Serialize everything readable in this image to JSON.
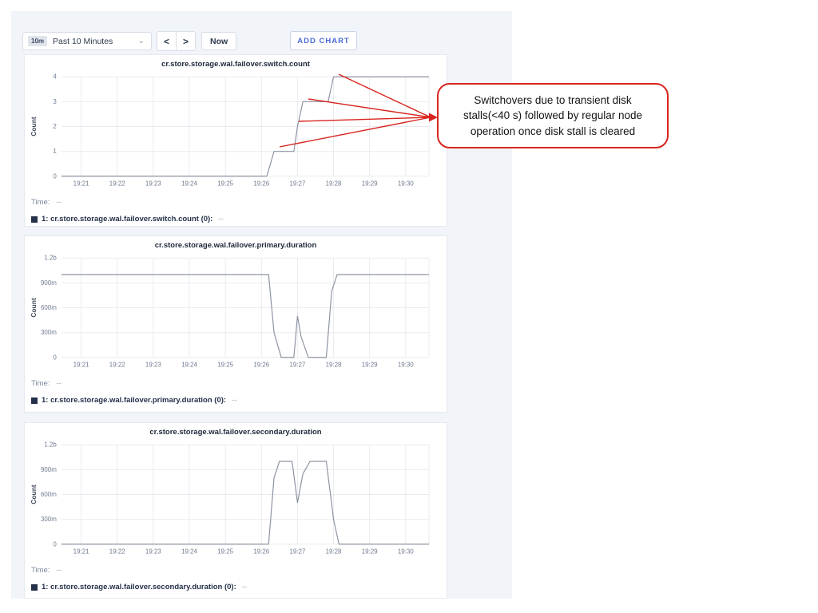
{
  "toolbar": {
    "time_badge": "10m",
    "time_label": "Past 10 Minutes",
    "prev_label": "<",
    "next_label": ">",
    "now_label": "Now",
    "add_chart_label": "ADD CHART",
    "accent_color": "#4a6bd6"
  },
  "annotation": {
    "text": "Switchovers due to transient disk stalls(<40 s) followed by regular node operation once disk stall is cleared",
    "color": "#d8251f",
    "arrow_origin": [
      539,
      147
    ],
    "arrow_targets": [
      [
        424,
        93
      ],
      [
        386,
        124
      ],
      [
        374,
        152
      ],
      [
        350,
        184
      ]
    ]
  },
  "chart_data": [
    {
      "type": "line",
      "title": "cr.store.storage.wal.failover.switch.count",
      "ylabel": "Count",
      "xlim": [
        20.45,
        30.65
      ],
      "ylim": [
        0,
        4
      ],
      "x_ticks": {
        "labels": [
          "19:21",
          "19:22",
          "19:23",
          "19:24",
          "19:25",
          "19:26",
          "19:27",
          "19:28",
          "19:29",
          "19:30"
        ],
        "values": [
          21,
          22,
          23,
          24,
          25,
          26,
          27,
          28,
          29,
          30
        ]
      },
      "y_ticks": {
        "labels": [
          "0",
          "1",
          "2",
          "3",
          "4"
        ],
        "values": [
          0,
          1,
          2,
          3,
          4
        ]
      },
      "line_color": "#8d94a2",
      "series_color": "#25304a",
      "series": [
        {
          "name": "1: cr.store.storage.wal.failover.switch.count (0)",
          "points": [
            [
              20.45,
              0
            ],
            [
              26.15,
              0
            ],
            [
              26.35,
              1
            ],
            [
              26.9,
              1
            ],
            [
              27.0,
              2
            ],
            [
              27.15,
              3
            ],
            [
              27.85,
              3
            ],
            [
              28.0,
              4
            ],
            [
              30.65,
              4
            ]
          ]
        }
      ],
      "legend": {
        "time_label": "Time:",
        "time_value": "--",
        "series_label": "1: cr.store.storage.wal.failover.switch.count (0):",
        "series_value": "--"
      }
    },
    {
      "type": "line",
      "title": "cr.store.storage.wal.failover.primary.duration",
      "ylabel": "Count",
      "xlim": [
        20.45,
        30.65
      ],
      "ylim": [
        0,
        1.2
      ],
      "x_ticks": {
        "labels": [
          "19:21",
          "19:22",
          "19:23",
          "19:24",
          "19:25",
          "19:26",
          "19:27",
          "19:28",
          "19:29",
          "19:30"
        ],
        "values": [
          21,
          22,
          23,
          24,
          25,
          26,
          27,
          28,
          29,
          30
        ]
      },
      "y_ticks": {
        "labels": [
          "0",
          "300m",
          "600m",
          "900m",
          "1.2b"
        ],
        "values": [
          0,
          0.3,
          0.6,
          0.9,
          1.2
        ]
      },
      "line_color": "#8d94a2",
      "series_color": "#25304a",
      "series": [
        {
          "name": "1: cr.store.storage.wal.failover.primary.duration (0)",
          "points": [
            [
              20.45,
              1.0
            ],
            [
              26.2,
              1.0
            ],
            [
              26.35,
              0.3
            ],
            [
              26.55,
              0
            ],
            [
              26.9,
              0
            ],
            [
              27.0,
              0.5
            ],
            [
              27.1,
              0.25
            ],
            [
              27.3,
              0
            ],
            [
              27.8,
              0
            ],
            [
              27.95,
              0.8
            ],
            [
              28.1,
              1.0
            ],
            [
              30.65,
              1.0
            ]
          ]
        }
      ],
      "legend": {
        "time_label": "Time:",
        "time_value": "--",
        "series_label": "1: cr.store.storage.wal.failover.primary.duration (0):",
        "series_value": "--"
      }
    },
    {
      "type": "line",
      "title": "cr.store.storage.wal.failover.secondary.duration",
      "ylabel": "Count",
      "xlim": [
        20.45,
        30.65
      ],
      "ylim": [
        0,
        1.2
      ],
      "x_ticks": {
        "labels": [
          "19:21",
          "19:22",
          "19:23",
          "19:24",
          "19:25",
          "19:26",
          "19:27",
          "19:28",
          "19:29",
          "19:30"
        ],
        "values": [
          21,
          22,
          23,
          24,
          25,
          26,
          27,
          28,
          29,
          30
        ]
      },
      "y_ticks": {
        "labels": [
          "0",
          "300m",
          "600m",
          "900m",
          "1.2b"
        ],
        "values": [
          0,
          0.3,
          0.6,
          0.9,
          1.2
        ]
      },
      "line_color": "#8d94a2",
      "series_color": "#25304a",
      "series": [
        {
          "name": "1: cr.store.storage.wal.failover.secondary.duration (0)",
          "points": [
            [
              20.45,
              0
            ],
            [
              26.2,
              0
            ],
            [
              26.35,
              0.8
            ],
            [
              26.5,
              1.0
            ],
            [
              26.85,
              1.0
            ],
            [
              27.0,
              0.5
            ],
            [
              27.15,
              0.85
            ],
            [
              27.35,
              1.0
            ],
            [
              27.8,
              1.0
            ],
            [
              28.0,
              0.3
            ],
            [
              28.15,
              0
            ],
            [
              30.65,
              0
            ]
          ]
        }
      ],
      "legend": {
        "time_label": "Time:",
        "time_value": "--",
        "series_label": "1: cr.store.storage.wal.failover.secondary.duration (0):",
        "series_value": "--"
      }
    }
  ]
}
